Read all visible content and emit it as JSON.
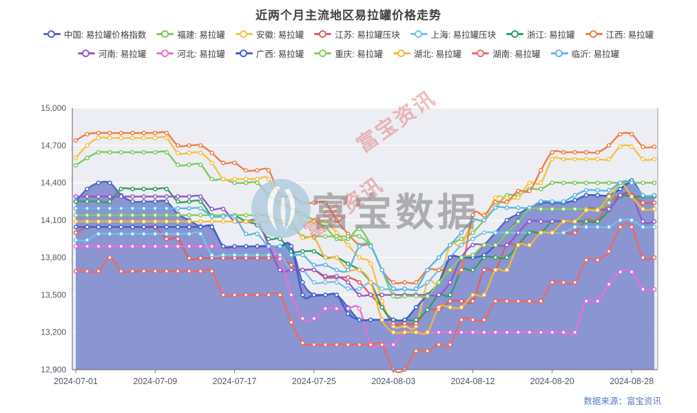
{
  "title": "近两个月主流地区易拉罐价格走势",
  "watermark": {
    "brand_text": "富宝数据",
    "tiled_text": "富宝资讯"
  },
  "footer": {
    "source_label": "数据来源：",
    "source_name": "富宝资讯"
  },
  "chart_data": {
    "type": "line",
    "grid": true,
    "legend_position": "top",
    "ylim": [
      12900,
      15000
    ],
    "y_ticks": [
      12900,
      13200,
      13500,
      13800,
      14100,
      14400,
      14700,
      15000
    ],
    "x_count": 52,
    "x_tick_indices": [
      0,
      7,
      14,
      21,
      28,
      35,
      42,
      49
    ],
    "x_tick_labels": [
      "2024-07-01",
      "2024-07-09",
      "2024-07-17",
      "2024-07-25",
      "2024-08-03",
      "2024-08-12",
      "2024-08-20",
      "2024-08-28"
    ],
    "area_fill_color": "#7e8bcd",
    "series": [
      {
        "name": "中国: 易拉罐价格指数",
        "color": "#4a67c4",
        "area": true,
        "values": [
          14250,
          14350,
          14400,
          14400,
          14300,
          14250,
          14250,
          14250,
          14250,
          14150,
          14100,
          14050,
          14050,
          13890,
          13890,
          13890,
          13890,
          13890,
          13890,
          13890,
          13600,
          13500,
          13500,
          13500,
          13400,
          13300,
          13300,
          13300,
          13300,
          13300,
          13400,
          13500,
          13600,
          13800,
          13800,
          13820,
          13900,
          14000,
          14100,
          14150,
          14200,
          14240,
          14240,
          14240,
          14260,
          14300,
          14300,
          14300,
          14350,
          14420,
          14300,
          14300
        ]
      },
      {
        "name": "福建: 易拉罐",
        "color": "#7cc85c",
        "area": false,
        "values": [
          14540,
          14600,
          14645,
          14645,
          14645,
          14645,
          14645,
          14645,
          14645,
          14545,
          14545,
          14545,
          14430,
          14430,
          14400,
          14400,
          14400,
          14300,
          14240,
          14200,
          14150,
          14100,
          14045,
          13950,
          13950,
          14030,
          13900,
          13700,
          13550,
          13550,
          13550,
          13700,
          13800,
          13900,
          13950,
          14000,
          14100,
          14200,
          14300,
          14300,
          14350,
          14350,
          14400,
          14400,
          14400,
          14400,
          14400,
          14400,
          14400,
          14400,
          14400,
          14400
        ]
      },
      {
        "name": "安徽: 易拉罐",
        "color": "#f5c242",
        "area": false,
        "values": [
          14600,
          14700,
          14760,
          14760,
          14760,
          14760,
          14760,
          14760,
          14760,
          14640,
          14640,
          14640,
          14560,
          14430,
          14430,
          14430,
          14430,
          14430,
          14210,
          14210,
          14090,
          14090,
          14090,
          14000,
          13900,
          13800,
          13750,
          13450,
          13250,
          13250,
          13250,
          13600,
          13600,
          13900,
          13900,
          14100,
          14100,
          14280,
          14280,
          14280,
          14400,
          14400,
          14590,
          14590,
          14590,
          14590,
          14590,
          14590,
          14690,
          14690,
          14590,
          14590
        ]
      },
      {
        "name": "江苏: 易拉罐压块",
        "color": "#e35d5d",
        "area": false,
        "values": [
          14000,
          14045,
          14045,
          14045,
          14045,
          14045,
          14045,
          14045,
          13950,
          13950,
          13795,
          13795,
          13795,
          13795,
          13795,
          13795,
          13795,
          13795,
          13795,
          13740,
          13700,
          13700,
          13640,
          13640,
          13640,
          13600,
          13500,
          13400,
          13270,
          13270,
          13270,
          13380,
          13380,
          13450,
          13450,
          13450,
          13700,
          13700,
          13900,
          13900,
          14000,
          14000,
          14000,
          14000,
          14000,
          14100,
          14100,
          14240,
          14300,
          14300,
          14240,
          14240
        ]
      },
      {
        "name": "上海: 易拉罐压块",
        "color": "#71c3e7",
        "area": false,
        "values": [
          13940,
          13940,
          13990,
          13990,
          13990,
          13990,
          13990,
          13990,
          13990,
          13990,
          13990,
          13990,
          13820,
          13820,
          13820,
          13820,
          13820,
          13820,
          13820,
          13700,
          13700,
          13600,
          13600,
          13600,
          13550,
          13550,
          13600,
          13550,
          13545,
          13545,
          13545,
          13600,
          13700,
          13800,
          13900,
          13950,
          14000,
          14000,
          14000,
          14000,
          14000,
          14000,
          14000,
          14000,
          14045,
          14045,
          14045,
          14045,
          14100,
          14100,
          14045,
          14045
        ]
      },
      {
        "name": "浙江: 易拉罐",
        "color": "#2d9e60",
        "area": false,
        "values": [
          14250,
          14250,
          14250,
          14250,
          14350,
          14350,
          14350,
          14350,
          14350,
          14250,
          14250,
          14250,
          14135,
          14135,
          14135,
          14090,
          14060,
          13950,
          13950,
          13850,
          13850,
          13850,
          13800,
          13800,
          13750,
          13700,
          13600,
          13400,
          13300,
          13300,
          13300,
          13380,
          13500,
          13500,
          13700,
          13700,
          13800,
          13800,
          13800,
          13900,
          14000,
          14000,
          14090,
          14090,
          14090,
          14090,
          14090,
          14180,
          14290,
          14290,
          14290,
          14290
        ]
      },
      {
        "name": "江西: 易拉罐",
        "color": "#ef7d45",
        "area": false,
        "values": [
          14740,
          14790,
          14800,
          14800,
          14800,
          14800,
          14800,
          14800,
          14800,
          14700,
          14700,
          14700,
          14640,
          14560,
          14560,
          14500,
          14500,
          14500,
          14300,
          14300,
          14240,
          14240,
          14240,
          14100,
          13990,
          13900,
          13890,
          13700,
          13600,
          13600,
          13600,
          13700,
          13700,
          13700,
          13700,
          14140,
          14140,
          14245,
          14245,
          14335,
          14335,
          14500,
          14645,
          14645,
          14645,
          14645,
          14645,
          14700,
          14790,
          14790,
          14690,
          14690
        ]
      },
      {
        "name": "河南: 易拉罐",
        "color": "#9159c8",
        "area": false,
        "values": [
          14290,
          14290,
          14290,
          14290,
          14290,
          14290,
          14290,
          14290,
          14290,
          14290,
          14290,
          14290,
          14190,
          14190,
          14090,
          14090,
          14090,
          13900,
          13700,
          13700,
          13700,
          13700,
          13650,
          13650,
          13600,
          13500,
          13500,
          13500,
          13500,
          13500,
          13500,
          13500,
          13500,
          13600,
          13800,
          13900,
          13900,
          13900,
          13900,
          14000,
          14090,
          14090,
          14090,
          14090,
          14090,
          14190,
          14190,
          14190,
          14300,
          14300,
          14090,
          14090
        ]
      },
      {
        "name": "河北: 易拉罐",
        "color": "#e96fd6",
        "area": false,
        "values": [
          13890,
          13890,
          13890,
          13890,
          13890,
          13890,
          13890,
          13890,
          13890,
          13890,
          13890,
          13890,
          13890,
          13890,
          13890,
          13890,
          13890,
          13890,
          13790,
          13500,
          13310,
          13310,
          13390,
          13390,
          13390,
          13390,
          13100,
          13100,
          13100,
          13200,
          13200,
          13200,
          13200,
          13200,
          13200,
          13200,
          13200,
          13200,
          13200,
          13200,
          13200,
          13200,
          13200,
          13200,
          13200,
          13450,
          13450,
          13585,
          13685,
          13685,
          13545,
          13545
        ]
      },
      {
        "name": "广西: 易拉罐",
        "color": "#3d5fce",
        "area": false,
        "values": [
          14045,
          14045,
          14045,
          14045,
          14045,
          14045,
          14045,
          14045,
          14045,
          14045,
          14045,
          14045,
          14045,
          13890,
          13890,
          13890,
          13890,
          13890,
          13890,
          13890,
          13500,
          13500,
          13500,
          13500,
          13350,
          13300,
          13300,
          13300,
          13300,
          13300,
          13400,
          13500,
          13600,
          13800,
          13800,
          13800,
          13820,
          13900,
          14000,
          14100,
          14190,
          14240,
          14240,
          14240,
          14260,
          14300,
          14300,
          14300,
          14350,
          14400,
          14300,
          14300
        ]
      },
      {
        "name": "重庆: 易拉罐",
        "color": "#85cc62",
        "area": false,
        "values": [
          14140,
          14140,
          14140,
          14140,
          14140,
          14140,
          14140,
          14140,
          14140,
          14140,
          14140,
          14140,
          14140,
          14140,
          14140,
          14140,
          14140,
          14140,
          14090,
          14045,
          13970,
          13970,
          13970,
          13970,
          13970,
          13970,
          13890,
          13700,
          13490,
          13490,
          13490,
          13490,
          13600,
          13700,
          13800,
          13820,
          13900,
          13900,
          14000,
          14090,
          14190,
          14190,
          14190,
          14190,
          14190,
          14190,
          14190,
          14240,
          14400,
          14400,
          14300,
          14300
        ]
      },
      {
        "name": "湖北: 易拉罐",
        "color": "#efb83c",
        "area": false,
        "values": [
          14090,
          14090,
          14090,
          14090,
          14090,
          14090,
          14090,
          14090,
          14090,
          14090,
          14090,
          14090,
          14090,
          14090,
          14090,
          14090,
          14090,
          14090,
          14090,
          14090,
          13960,
          13960,
          13800,
          13800,
          13700,
          13700,
          13600,
          13300,
          13200,
          13200,
          13200,
          13200,
          13400,
          13400,
          13400,
          13500,
          13500,
          13700,
          13700,
          13900,
          13900,
          14000,
          14000,
          14090,
          14090,
          14180,
          14180,
          14290,
          14400,
          14290,
          14190,
          14190
        ]
      },
      {
        "name": "湖南: 易拉罐",
        "color": "#ee6962",
        "area": false,
        "values": [
          13690,
          13690,
          13690,
          13800,
          13690,
          13690,
          13690,
          13690,
          13690,
          13690,
          13690,
          13690,
          13690,
          13500,
          13500,
          13500,
          13500,
          13500,
          13500,
          13280,
          13115,
          13100,
          13100,
          13100,
          13100,
          13100,
          13100,
          13100,
          12900,
          12900,
          13050,
          13050,
          13100,
          13100,
          13300,
          13300,
          13300,
          13450,
          13450,
          13450,
          13450,
          13450,
          13600,
          13600,
          13600,
          13780,
          13780,
          13850,
          14045,
          14045,
          13800,
          13800
        ]
      },
      {
        "name": "临沂: 易拉罐",
        "color": "#5fb5e4",
        "area": false,
        "values": [
          14195,
          14195,
          14195,
          14195,
          14195,
          14195,
          14195,
          14195,
          14195,
          14195,
          14195,
          14195,
          14130,
          14130,
          14130,
          13990,
          13990,
          13890,
          13890,
          13820,
          13820,
          13740,
          13740,
          13700,
          13700,
          13890,
          13890,
          13700,
          13550,
          13550,
          13550,
          13700,
          13800,
          13900,
          14000,
          14100,
          14100,
          14200,
          14200,
          14200,
          14200,
          14250,
          14250,
          14250,
          14300,
          14340,
          14340,
          14340,
          14400,
          14400,
          14300,
          14300
        ]
      }
    ]
  }
}
